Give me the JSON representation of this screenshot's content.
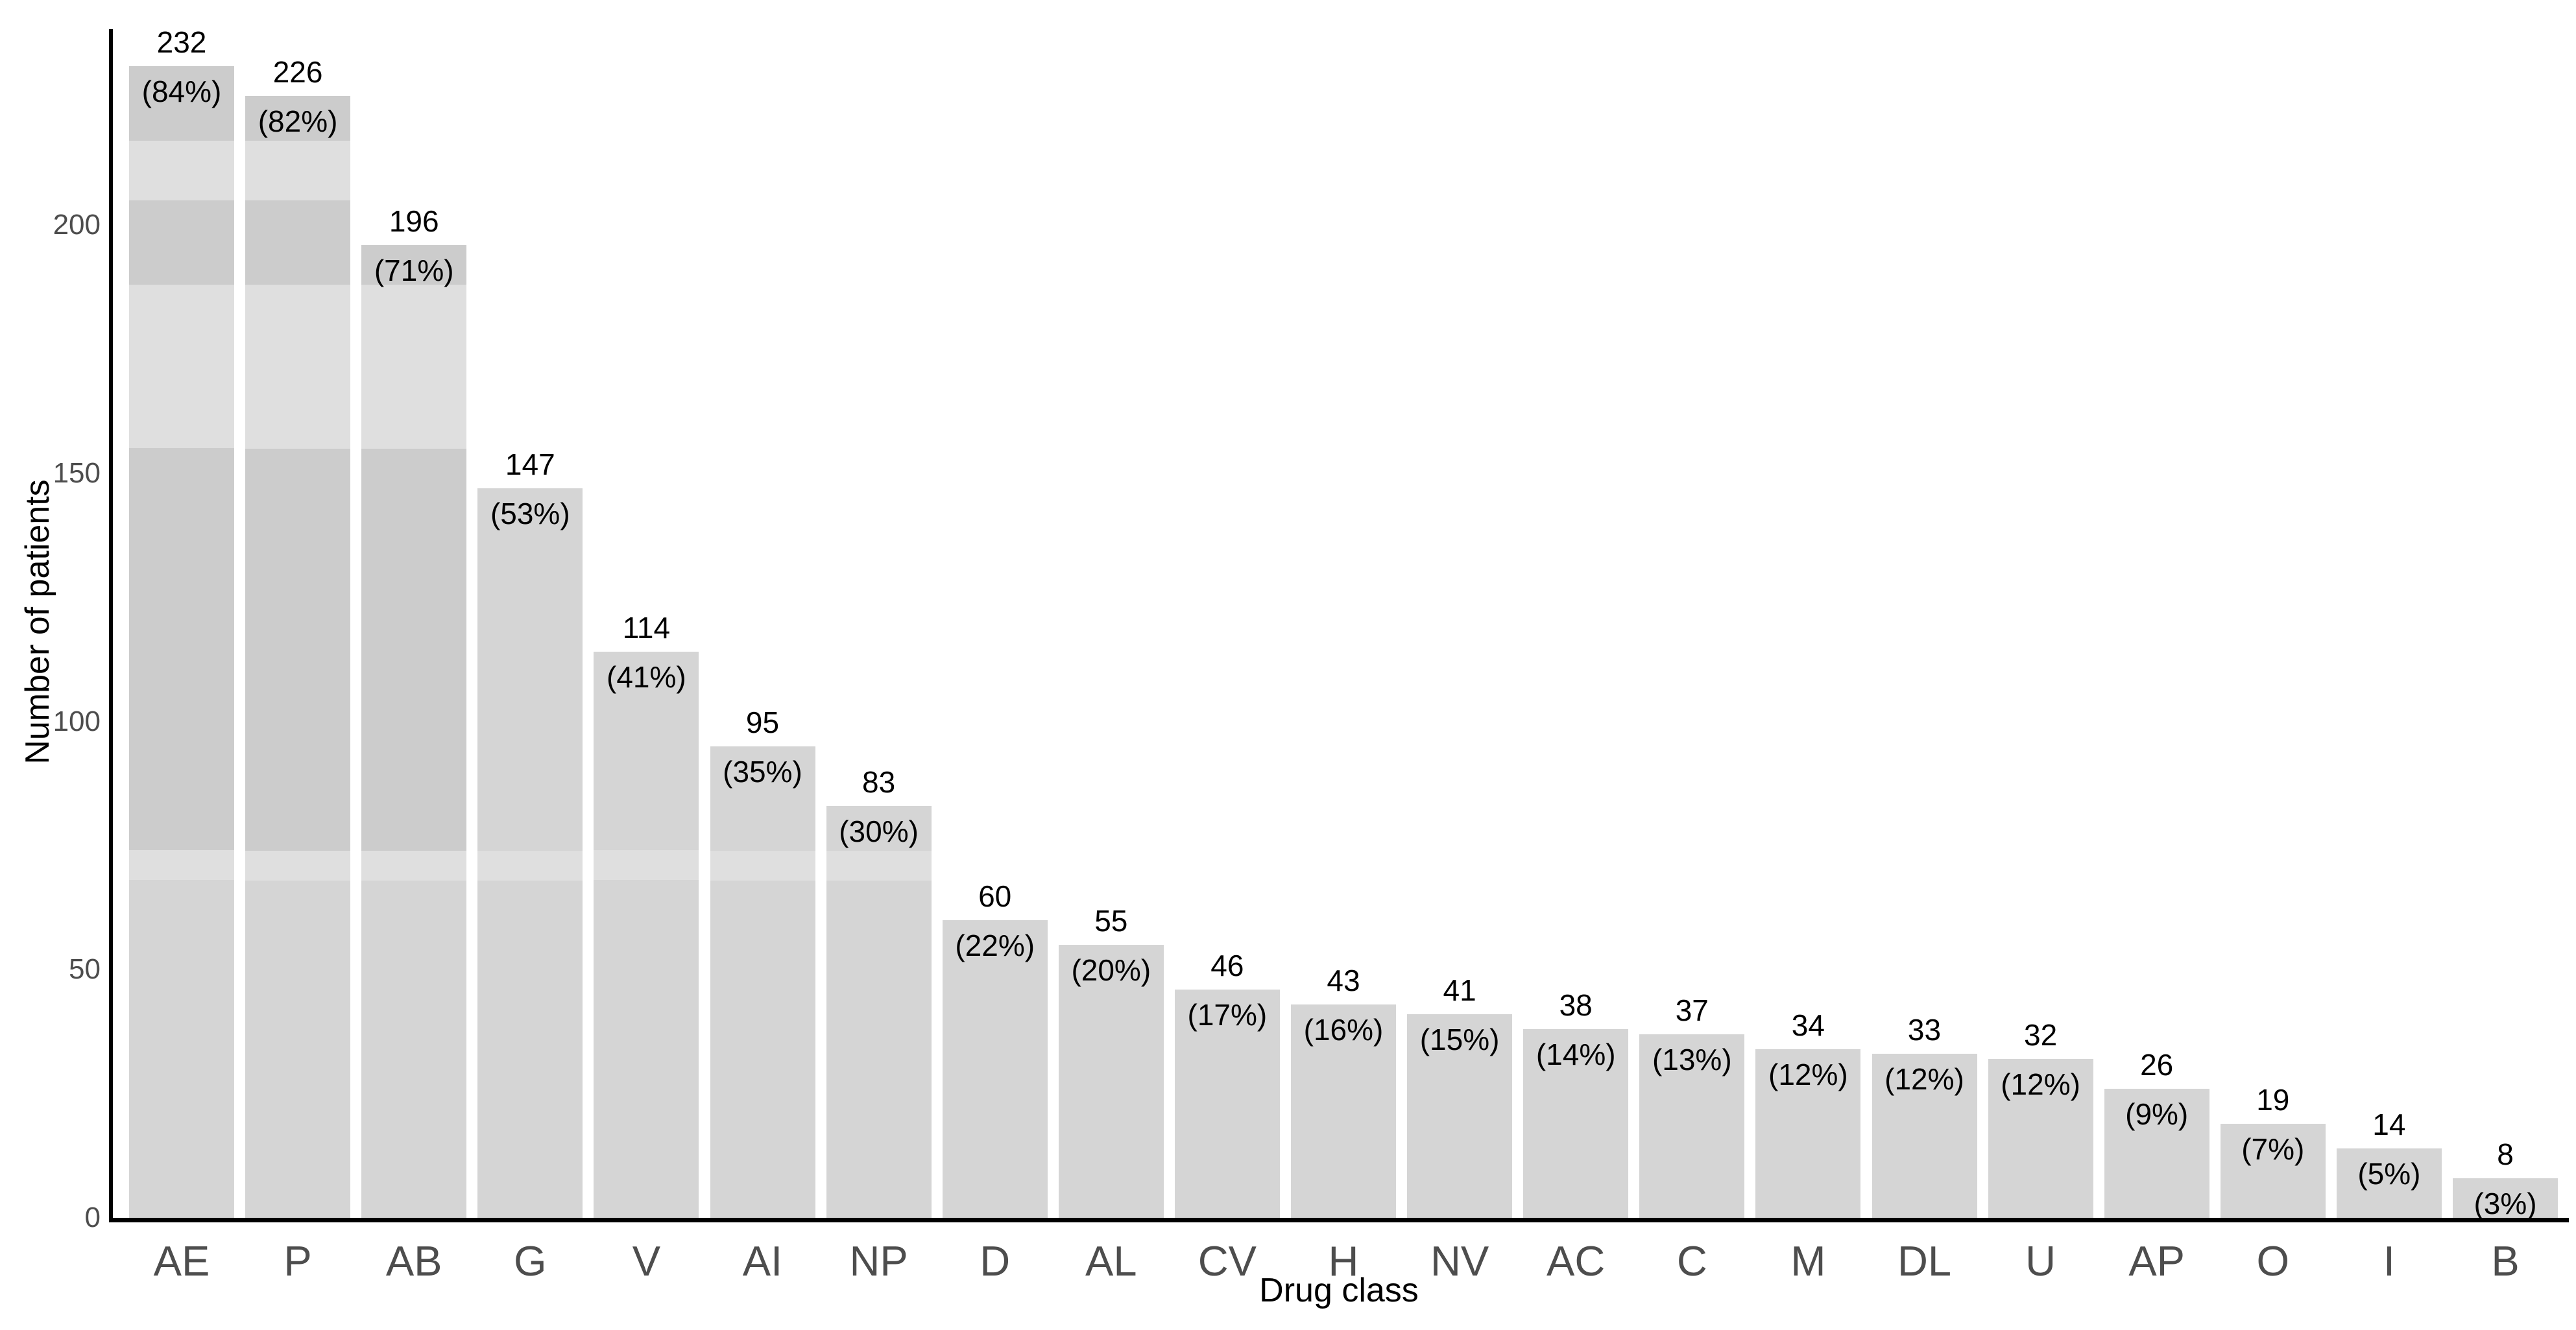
{
  "chart_data": {
    "type": "bar",
    "title": "",
    "xlabel": "Drug class",
    "ylabel": "Number of patients",
    "categories": [
      "AE",
      "P",
      "AB",
      "G",
      "V",
      "AI",
      "NP",
      "D",
      "AL",
      "CV",
      "H",
      "NV",
      "AC",
      "C",
      "M",
      "DL",
      "U",
      "AP",
      "O",
      "I",
      "B"
    ],
    "values": [
      232,
      226,
      196,
      147,
      114,
      95,
      83,
      60,
      55,
      46,
      43,
      41,
      38,
      37,
      34,
      33,
      32,
      26,
      19,
      14,
      8
    ],
    "percent_labels": [
      "(84%)",
      "(82%)",
      "(71%)",
      "(53%)",
      "(41%)",
      "(35%)",
      "(30%)",
      "(22%)",
      "(20%)",
      "(17%)",
      "(16%)",
      "(15%)",
      "(14%)",
      "(13%)",
      "(12%)",
      "(12%)",
      "(12%)",
      "(9%)",
      "(7%)",
      "(5%)",
      "(3%)"
    ],
    "yticks": [
      0,
      50,
      100,
      150,
      200
    ],
    "ylim": [
      0,
      239
    ],
    "grid": false,
    "legend": null,
    "bar_orientation": "vertical"
  },
  "shade_bands": [
    {
      "tone": "dark",
      "from": 217,
      "to": 233,
      "bars": [
        "AE",
        "P"
      ]
    },
    {
      "tone": "light",
      "from": 205,
      "to": 217,
      "bars": [
        "AE",
        "P"
      ]
    },
    {
      "tone": "dark",
      "from": 188,
      "to": 205,
      "bars": [
        "AE",
        "P",
        "AB"
      ]
    },
    {
      "tone": "light",
      "from": 155,
      "to": 188,
      "bars": [
        "AE",
        "P",
        "AB"
      ]
    },
    {
      "tone": "dark",
      "from": 74,
      "to": 155,
      "bars": [
        "AE",
        "P",
        "AB"
      ]
    },
    {
      "tone": "light",
      "from": 68,
      "to": 74,
      "bars": [
        "AE",
        "P",
        "AB",
        "G",
        "V",
        "AI",
        "NP"
      ]
    }
  ],
  "style": {
    "background": "#ffffff",
    "bar_fill": "#d5d5d5",
    "band_dark": "#cccccc",
    "band_light": "#dfdfdf",
    "axis_line_color": "#000000",
    "tick_label_color": "#4d4d4d",
    "category_label_color": "#4d4d4d",
    "value_label_color": "#000000",
    "axis_title_color": "#000000"
  }
}
